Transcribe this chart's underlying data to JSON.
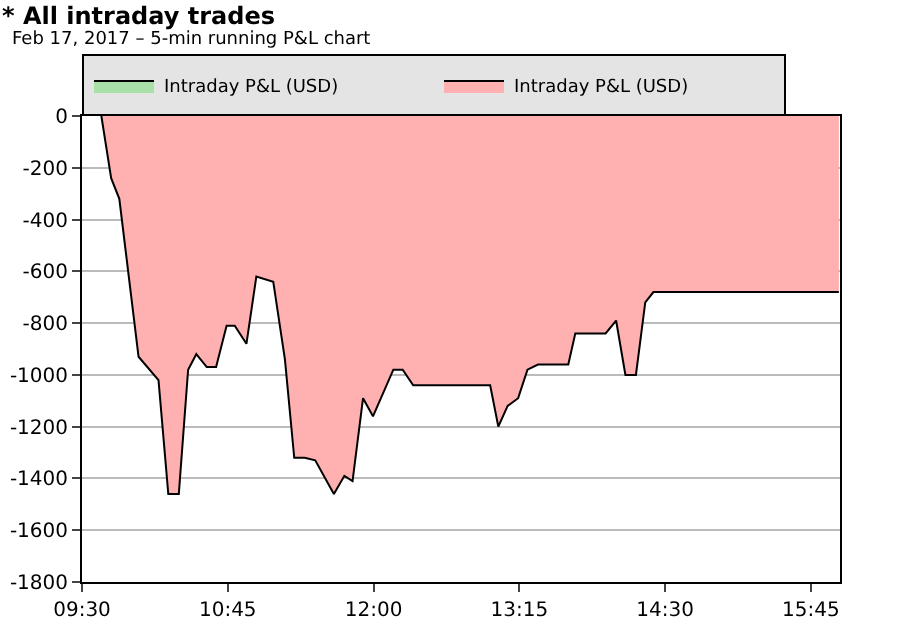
{
  "chart_data": {
    "type": "area",
    "title": "* All intraday trades",
    "subtitle": "Feb 17, 2017 – 5-min running P&L chart",
    "x": [
      9.666,
      9.75,
      9.82,
      9.985,
      10.156,
      10.24,
      10.33,
      10.41,
      10.48,
      10.57,
      10.65,
      10.74,
      10.81,
      10.91,
      10.995,
      11.14,
      11.24,
      11.32,
      11.41,
      11.5,
      11.66,
      11.75,
      11.82,
      11.91,
      11.995,
      12.17,
      12.25,
      12.34,
      13.0,
      13.07,
      13.15,
      13.24,
      13.32,
      13.41,
      13.67,
      13.73,
      13.99,
      14.08,
      14.16,
      14.25,
      14.33,
      14.4,
      15.99
    ],
    "series": [
      {
        "name": "Intraday P&L (USD)",
        "color": "#a8e0a8",
        "values": [
          null,
          null,
          null,
          null,
          null,
          null,
          null,
          null,
          null,
          null,
          null,
          null,
          null,
          null,
          null,
          null,
          null,
          null,
          null,
          null,
          null,
          null,
          null,
          null,
          null,
          null,
          null,
          null,
          null,
          null,
          null,
          null,
          null,
          null,
          null,
          null,
          null,
          null,
          null,
          null,
          null,
          null,
          null
        ]
      },
      {
        "name": "Intraday P&L (USD)",
        "color": "#ffb0b0",
        "values": [
          0,
          -240,
          -320,
          -930,
          -1020,
          -1460,
          -1460,
          -980,
          -920,
          -970,
          -970,
          -810,
          -810,
          -880,
          -620,
          -640,
          -940,
          -1320,
          -1320,
          -1330,
          -1460,
          -1390,
          -1410,
          -1090,
          -1160,
          -980,
          -980,
          -1040,
          -1040,
          -1200,
          -1120,
          -1090,
          -980,
          -960,
          -960,
          -840,
          -840,
          -790,
          -1000,
          -1000,
          -720,
          -680,
          -680
        ]
      }
    ],
    "xlim": [
      9.5,
      16.0
    ],
    "xticks": [
      {
        "value": 9.5,
        "label": "09:30"
      },
      {
        "value": 10.75,
        "label": "10:45"
      },
      {
        "value": 12.0,
        "label": "12:00"
      },
      {
        "value": 13.25,
        "label": "13:15"
      },
      {
        "value": 14.5,
        "label": "14:30"
      },
      {
        "value": 15.75,
        "label": "15:45"
      }
    ],
    "ylim": [
      -1800,
      0
    ],
    "yticks": [
      -1800,
      -1600,
      -1400,
      -1200,
      -1000,
      -800,
      -600,
      -400,
      -200,
      0
    ],
    "grid": "y",
    "legend": "top"
  }
}
